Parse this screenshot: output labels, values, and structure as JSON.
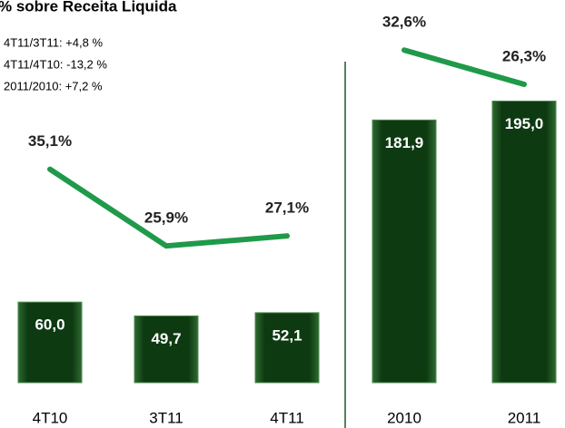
{
  "chart_data": [
    {
      "type": "bar",
      "title": "% sobre Receita Liquida",
      "annotations": [
        "4T11/3T11: +4,8 %",
        "4T11/4T10: -13,2 %",
        "2011/2010: +7,2 %"
      ],
      "categories": [
        "4T10",
        "3T11",
        "4T11"
      ],
      "series": [
        {
          "type": "bar",
          "color": "#0e3a12",
          "values": [
            60.0,
            49.7,
            52.1
          ],
          "value_labels": [
            "60,0",
            "49,7",
            "52,1"
          ]
        },
        {
          "type": "line",
          "axis": "y2",
          "color": "#1f9a4a",
          "values": [
            35.1,
            25.9,
            27.1
          ],
          "value_labels": [
            "35,1%",
            "25,9%",
            "27,1%"
          ]
        }
      ],
      "ylim": [
        0,
        285
      ],
      "y2lim": [
        9.5,
        55.4
      ]
    },
    {
      "type": "bar",
      "categories": [
        "2010",
        "2011"
      ],
      "series": [
        {
          "type": "bar",
          "color": "#0e3a12",
          "values": [
            181.9,
            195.0
          ],
          "value_labels": [
            "181,9",
            "195,0"
          ]
        },
        {
          "type": "line",
          "axis": "y2",
          "color": "#1f9a4a",
          "values": [
            32.6,
            26.3
          ],
          "value_labels": [
            "32,6%",
            "26,3%"
          ]
        }
      ],
      "ylim": [
        0,
        265
      ],
      "y2lim": [
        -28.5,
        41.8
      ]
    }
  ]
}
